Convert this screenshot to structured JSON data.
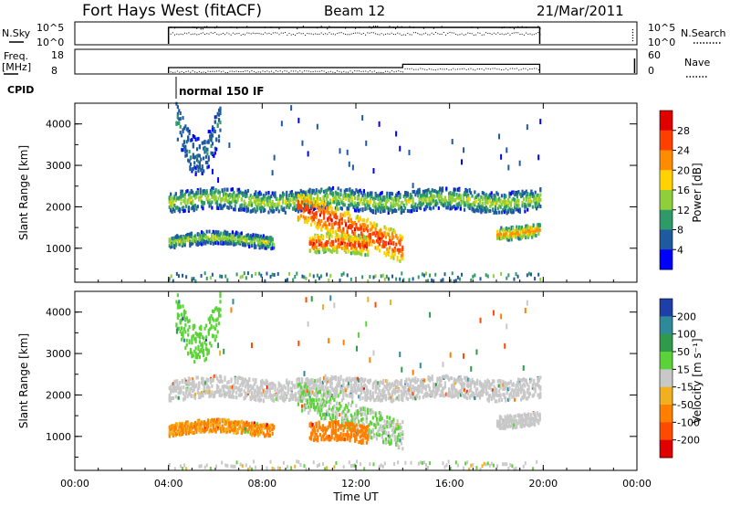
{
  "header": {
    "title": "Fort Hays West (fitACF)",
    "beam": "Beam 12",
    "date": "21/Mar/2011"
  },
  "panels": {
    "nsky": {
      "label": "N.Sky",
      "tick_top": "10^5",
      "tick_bottom": "10^0"
    },
    "nsearch": {
      "label": "N.Search",
      "tick_top": "10^5",
      "tick_bottom": "10^0"
    },
    "freq": {
      "label_line1": "Freq.",
      "label_line2": "[MHz]",
      "tick_top": "18",
      "tick_bottom": "8"
    },
    "nave": {
      "label": "Nave",
      "tick_top": "60",
      "tick_bottom": "0"
    },
    "cpid": {
      "label": "CPID",
      "value": "normal 150 IF"
    }
  },
  "power_panel": {
    "ylabel": "Slant Range [km]",
    "cbar_label": "Power [dB]",
    "cbar_ticks": [
      "28",
      "24",
      "20",
      "16",
      "12",
      "8",
      "4"
    ],
    "cbar_colors": [
      "#e00000",
      "#ff4000",
      "#ff8c00",
      "#ffd200",
      "#8fcf3a",
      "#2e9a6a",
      "#1f5aa0",
      "#0000ff"
    ]
  },
  "velocity_panel": {
    "ylabel": "Slant Range [km]",
    "cbar_label": "Velocity [m s⁻¹]",
    "cbar_ticks": [
      "200",
      "100",
      "50",
      "15",
      "-15",
      "-50",
      "-100",
      "-200"
    ],
    "cbar_colors": [
      "#1f3fa8",
      "#2e8a9a",
      "#2f9a4a",
      "#5cd23a",
      "#c8c8c8",
      "#f0b020",
      "#ff8000",
      "#ff4a00",
      "#e00000"
    ]
  },
  "chart_data": {
    "type": "heatmap",
    "x_label": "Time UT",
    "x_ticks": [
      "00:00",
      "04:00",
      "08:00",
      "12:00",
      "16:00",
      "20:00",
      "00:00"
    ],
    "x_range_hours": [
      0,
      24
    ],
    "y_label": "Slant Range [km]",
    "y_ticks": [
      1000,
      2000,
      3000,
      4000
    ],
    "y_range_km": [
      180,
      4500
    ],
    "data_window_hours": [
      4.0,
      19.85
    ],
    "cpid_change_hour": 14.0,
    "freq_levels_mhz": [
      {
        "from": 4.0,
        "to": 14.0,
        "value": 10.5
      },
      {
        "from": 14.0,
        "to": 19.85,
        "value": 12
      }
    ],
    "echo_bands": [
      {
        "name": "far band",
        "start_hour": 4.0,
        "end_hour": 19.85,
        "range_km": [
          1900,
          2400
        ],
        "power_db": [
          4,
          16
        ],
        "velocity": [
          -15,
          15
        ]
      },
      {
        "name": "descending band",
        "start_hour": 9.5,
        "end_hour": 14.0,
        "range_km": [
          1000,
          2000
        ],
        "power_db": [
          16,
          28
        ],
        "velocity": [
          -15,
          50
        ]
      },
      {
        "name": "near band morning",
        "start_hour": 4.0,
        "end_hour": 8.5,
        "range_km": [
          1050,
          1350
        ],
        "power_db": [
          4,
          16
        ],
        "velocity": [
          -100,
          -15
        ]
      },
      {
        "name": "near band midday",
        "start_hour": 10.0,
        "end_hour": 12.5,
        "range_km": [
          850,
          1300
        ],
        "power_db": [
          12,
          28
        ],
        "velocity": [
          -100,
          -50
        ]
      },
      {
        "name": "evening band",
        "start_hour": 18.0,
        "end_hour": 19.85,
        "range_km": [
          1250,
          1550
        ],
        "power_db": [
          8,
          24
        ],
        "velocity": [
          -15,
          15
        ]
      },
      {
        "name": "high range patch",
        "start_hour": 4.3,
        "end_hour": 6.2,
        "range_km": [
          3200,
          4100
        ],
        "power_db": [
          4,
          8
        ],
        "velocity": [
          15,
          50
        ]
      }
    ]
  }
}
